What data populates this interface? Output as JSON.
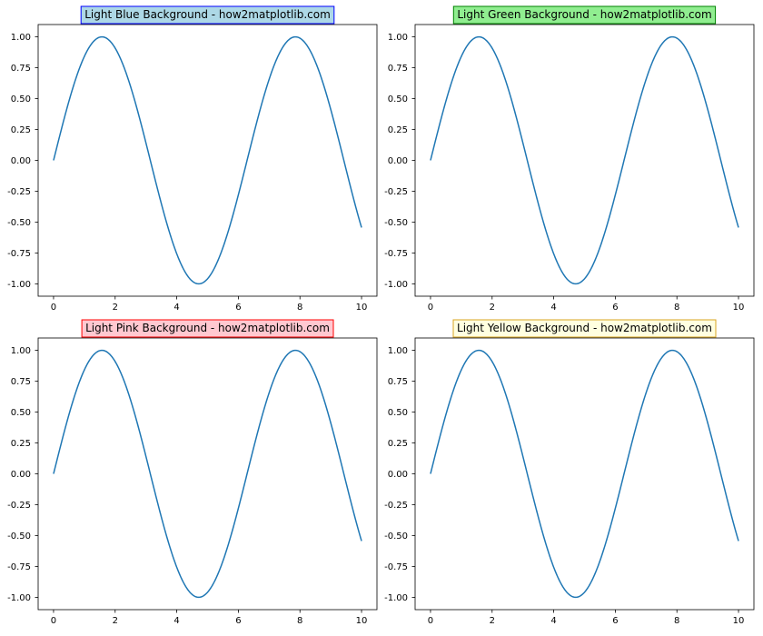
{
  "chart_data": [
    {
      "type": "line",
      "title": "Light Blue Background - how2matplotlib.com",
      "title_bg": "#add8e6",
      "title_border": "#0000ff",
      "x_ticks": [
        0,
        2,
        4,
        6,
        8,
        10
      ],
      "y_ticks": [
        -1.0,
        -0.75,
        -0.5,
        -0.25,
        0.0,
        0.25,
        0.5,
        0.75,
        1.0
      ],
      "y_tick_labels": [
        "-1.00",
        "-0.75",
        "-0.50",
        "-0.25",
        "0.00",
        "0.25",
        "0.50",
        "0.75",
        "1.00"
      ],
      "xlim": [
        -0.5,
        10.5
      ],
      "ylim": [
        -1.1,
        1.1
      ],
      "grid": false,
      "series": [
        {
          "function": "sin(x)",
          "x_range": [
            0,
            10
          ],
          "color": "#1f77b4"
        }
      ]
    },
    {
      "type": "line",
      "title": "Light Green Background - how2matplotlib.com",
      "title_bg": "#90ee90",
      "title_border": "#008000",
      "x_ticks": [
        0,
        2,
        4,
        6,
        8,
        10
      ],
      "y_ticks": [
        -1.0,
        -0.75,
        -0.5,
        -0.25,
        0.0,
        0.25,
        0.5,
        0.75,
        1.0
      ],
      "y_tick_labels": [
        "-1.00",
        "-0.75",
        "-0.50",
        "-0.25",
        "0.00",
        "0.25",
        "0.50",
        "0.75",
        "1.00"
      ],
      "xlim": [
        -0.5,
        10.5
      ],
      "ylim": [
        -1.1,
        1.1
      ],
      "grid": false,
      "series": [
        {
          "function": "sin(x)",
          "x_range": [
            0,
            10
          ],
          "color": "#1f77b4"
        }
      ]
    },
    {
      "type": "line",
      "title": "Light Pink Background - how2matplotlib.com",
      "title_bg": "#ffc8d0",
      "title_border": "#ff0000",
      "x_ticks": [
        0,
        2,
        4,
        6,
        8,
        10
      ],
      "y_ticks": [
        -1.0,
        -0.75,
        -0.5,
        -0.25,
        0.0,
        0.25,
        0.5,
        0.75,
        1.0
      ],
      "y_tick_labels": [
        "-1.00",
        "-0.75",
        "-0.50",
        "-0.25",
        "0.00",
        "0.25",
        "0.50",
        "0.75",
        "1.00"
      ],
      "xlim": [
        -0.5,
        10.5
      ],
      "ylim": [
        -1.1,
        1.1
      ],
      "grid": false,
      "series": [
        {
          "function": "sin(x)",
          "x_range": [
            0,
            10
          ],
          "color": "#1f77b4"
        }
      ]
    },
    {
      "type": "line",
      "title": "Light Yellow Background - how2matplotlib.com",
      "title_bg": "#ffffe0",
      "title_border": "#daa520",
      "x_ticks": [
        0,
        2,
        4,
        6,
        8,
        10
      ],
      "y_ticks": [
        -1.0,
        -0.75,
        -0.5,
        -0.25,
        0.0,
        0.25,
        0.5,
        0.75,
        1.0
      ],
      "y_tick_labels": [
        "-1.00",
        "-0.75",
        "-0.50",
        "-0.25",
        "0.00",
        "0.25",
        "0.50",
        "0.75",
        "1.00"
      ],
      "xlim": [
        -0.5,
        10.5
      ],
      "ylim": [
        -1.1,
        1.1
      ],
      "grid": false,
      "series": [
        {
          "function": "sin(x)",
          "x_range": [
            0,
            10
          ],
          "color": "#1f77b4"
        }
      ]
    }
  ]
}
